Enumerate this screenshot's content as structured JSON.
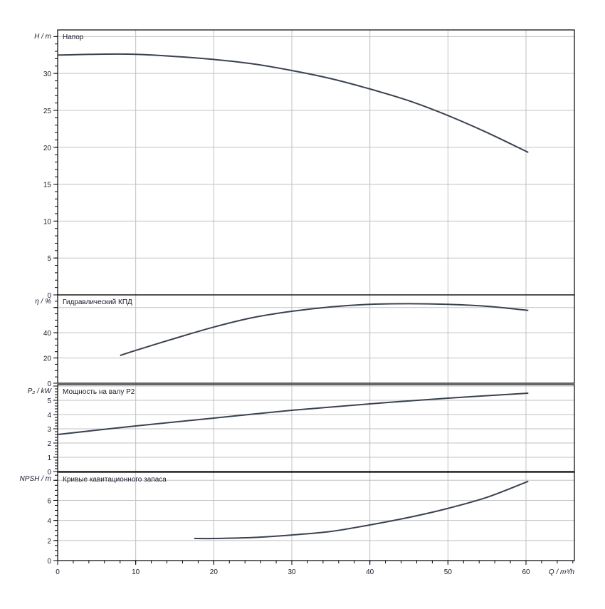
{
  "chart_data": [
    {
      "type": "line",
      "title": "Напор",
      "ylabel": "H / m",
      "ylim": [
        0,
        35.9
      ],
      "yticks": [
        0,
        5,
        10,
        15,
        20,
        25,
        30
      ],
      "grid": true,
      "x": [
        0,
        10,
        20,
        25,
        30,
        35,
        40,
        45,
        50,
        55,
        60.3
      ],
      "values": [
        32.5,
        32.6,
        31.9,
        31.3,
        30.4,
        29.3,
        27.9,
        26.3,
        24.3,
        22.0,
        19.3
      ]
    },
    {
      "type": "line",
      "title": "Гидравлический КПД",
      "ylabel": "η / %",
      "ylim": [
        0,
        70
      ],
      "yticks": [
        0,
        20,
        40
      ],
      "grid": true,
      "x": [
        8,
        10,
        15,
        20,
        25,
        30,
        35,
        40,
        45,
        50,
        55,
        60.3
      ],
      "values": [
        22,
        26,
        35.5,
        44.5,
        52,
        57,
        60.5,
        62.5,
        63,
        62.5,
        61,
        57.7
      ]
    },
    {
      "type": "line",
      "title": "Мощность на валу P2",
      "ylabel": "P₂ / kW",
      "ylim": [
        0,
        6.1
      ],
      "yticks": [
        0,
        1,
        2,
        3,
        4,
        5
      ],
      "grid": true,
      "x": [
        0,
        10,
        20,
        30,
        40,
        50,
        60.3
      ],
      "values": [
        2.6,
        3.2,
        3.75,
        4.3,
        4.75,
        5.15,
        5.5
      ]
    },
    {
      "type": "line",
      "title": "Кривые кавитационного запаса",
      "ylabel": "NPSH / m",
      "ylim": [
        0,
        8.8
      ],
      "yticks": [
        0,
        2,
        4,
        6
      ],
      "grid": true,
      "x": [
        17.5,
        20,
        25,
        30,
        35,
        40,
        45,
        50,
        55,
        60.3
      ],
      "values": [
        2.2,
        2.2,
        2.3,
        2.55,
        2.9,
        3.55,
        4.3,
        5.2,
        6.3,
        7.9
      ]
    }
  ],
  "x_axis": {
    "label": "Q / m³/h",
    "xlim": [
      0,
      66.2
    ],
    "ticks": [
      0,
      10,
      20,
      30,
      40,
      50,
      60
    ]
  },
  "colors": {
    "curve": "#3a4250",
    "grid": "#c0c0c0",
    "axis": "#000000"
  }
}
